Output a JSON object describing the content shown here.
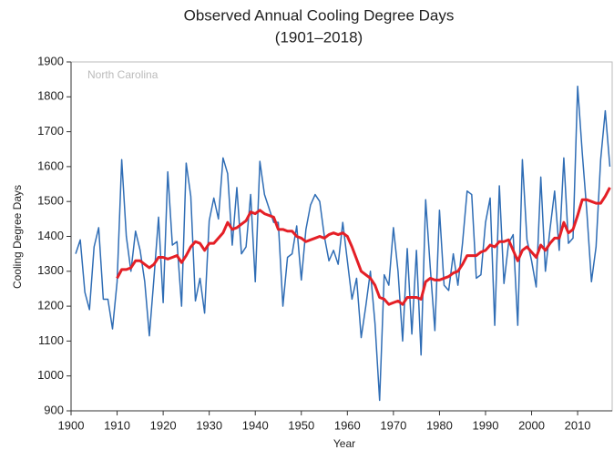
{
  "chart_data": {
    "type": "line",
    "title": "Observed Annual Cooling Degree Days",
    "subtitle": "(1901–2018)",
    "annotation": "North Carolina",
    "xlabel": "Year",
    "ylabel": "Cooling Degree Days",
    "x": [
      1901,
      1902,
      1903,
      1904,
      1905,
      1906,
      1907,
      1908,
      1909,
      1910,
      1911,
      1912,
      1913,
      1914,
      1915,
      1916,
      1917,
      1918,
      1919,
      1920,
      1921,
      1922,
      1923,
      1924,
      1925,
      1926,
      1927,
      1928,
      1929,
      1930,
      1931,
      1932,
      1933,
      1934,
      1935,
      1936,
      1937,
      1938,
      1939,
      1940,
      1941,
      1942,
      1943,
      1944,
      1945,
      1946,
      1947,
      1948,
      1949,
      1950,
      1951,
      1952,
      1953,
      1954,
      1955,
      1956,
      1957,
      1958,
      1959,
      1960,
      1961,
      1962,
      1963,
      1964,
      1965,
      1966,
      1967,
      1968,
      1969,
      1970,
      1971,
      1972,
      1973,
      1974,
      1975,
      1976,
      1977,
      1978,
      1979,
      1980,
      1981,
      1982,
      1983,
      1984,
      1985,
      1986,
      1987,
      1988,
      1989,
      1990,
      1991,
      1992,
      1993,
      1994,
      1995,
      1996,
      1997,
      1998,
      1999,
      2000,
      2001,
      2002,
      2003,
      2004,
      2005,
      2006,
      2007,
      2008,
      2009,
      2010,
      2011,
      2012,
      2013,
      2014,
      2015,
      2016,
      2017
    ],
    "series": [
      {
        "color": "#2f6db5",
        "values": [
          1350,
          1390,
          1240,
          1190,
          1370,
          1425,
          1220,
          1220,
          1135,
          1270,
          1620,
          1400,
          1300,
          1415,
          1360,
          1270,
          1115,
          1280,
          1455,
          1210,
          1585,
          1375,
          1385,
          1200,
          1610,
          1515,
          1215,
          1280,
          1180,
          1445,
          1510,
          1450,
          1625,
          1580,
          1375,
          1540,
          1350,
          1370,
          1520,
          1270,
          1615,
          1520,
          1480,
          1440,
          1440,
          1200,
          1340,
          1350,
          1430,
          1275,
          1420,
          1490,
          1520,
          1500,
          1400,
          1330,
          1360,
          1320,
          1440,
          1330,
          1220,
          1280,
          1110,
          1200,
          1300,
          1150,
          930,
          1290,
          1260,
          1425,
          1300,
          1100,
          1365,
          1120,
          1360,
          1060,
          1505,
          1310,
          1130,
          1475,
          1260,
          1245,
          1350,
          1260,
          1380,
          1530,
          1520,
          1280,
          1290,
          1440,
          1510,
          1145,
          1545,
          1265,
          1380,
          1405,
          1145,
          1620,
          1390,
          1330,
          1255,
          1570,
          1300,
          1420,
          1530,
          1360,
          1625,
          1380,
          1395,
          1830,
          1640,
          1470,
          1270,
          1370,
          1620,
          1760,
          1600
        ]
      },
      {
        "color": "#e41f26",
        "values": [
          null,
          null,
          null,
          null,
          null,
          null,
          null,
          null,
          null,
          1280,
          1305,
          1305,
          1310,
          1330,
          1330,
          1320,
          1310,
          1320,
          1340,
          1340,
          1335,
          1340,
          1345,
          1325,
          1345,
          1370,
          1385,
          1380,
          1360,
          1380,
          1380,
          1395,
          1410,
          1440,
          1420,
          1425,
          1435,
          1445,
          1470,
          1465,
          1475,
          1465,
          1460,
          1455,
          1420,
          1420,
          1415,
          1415,
          1400,
          1395,
          1385,
          1390,
          1395,
          1400,
          1395,
          1405,
          1410,
          1405,
          1410,
          1400,
          1370,
          1335,
          1300,
          1290,
          1280,
          1260,
          1225,
          1220,
          1205,
          1210,
          1215,
          1205,
          1225,
          1225,
          1225,
          1220,
          1270,
          1280,
          1275,
          1275,
          1280,
          1285,
          1295,
          1300,
          1320,
          1345,
          1345,
          1345,
          1355,
          1360,
          1375,
          1370,
          1385,
          1385,
          1390,
          1360,
          1330,
          1360,
          1370,
          1355,
          1340,
          1375,
          1360,
          1380,
          1395,
          1395,
          1440,
          1410,
          1420,
          1460,
          1505,
          1505,
          1500,
          1495,
          1495,
          1515,
          1540
        ]
      }
    ],
    "xlim": [
      1900,
      2017.5
    ],
    "xticks": [
      1900,
      1910,
      1920,
      1930,
      1940,
      1950,
      1960,
      1970,
      1980,
      1990,
      2000,
      2010
    ],
    "ylim": [
      900,
      1900
    ],
    "yticks": [
      900,
      1000,
      1100,
      1200,
      1300,
      1400,
      1500,
      1600,
      1700,
      1800,
      1900
    ]
  }
}
